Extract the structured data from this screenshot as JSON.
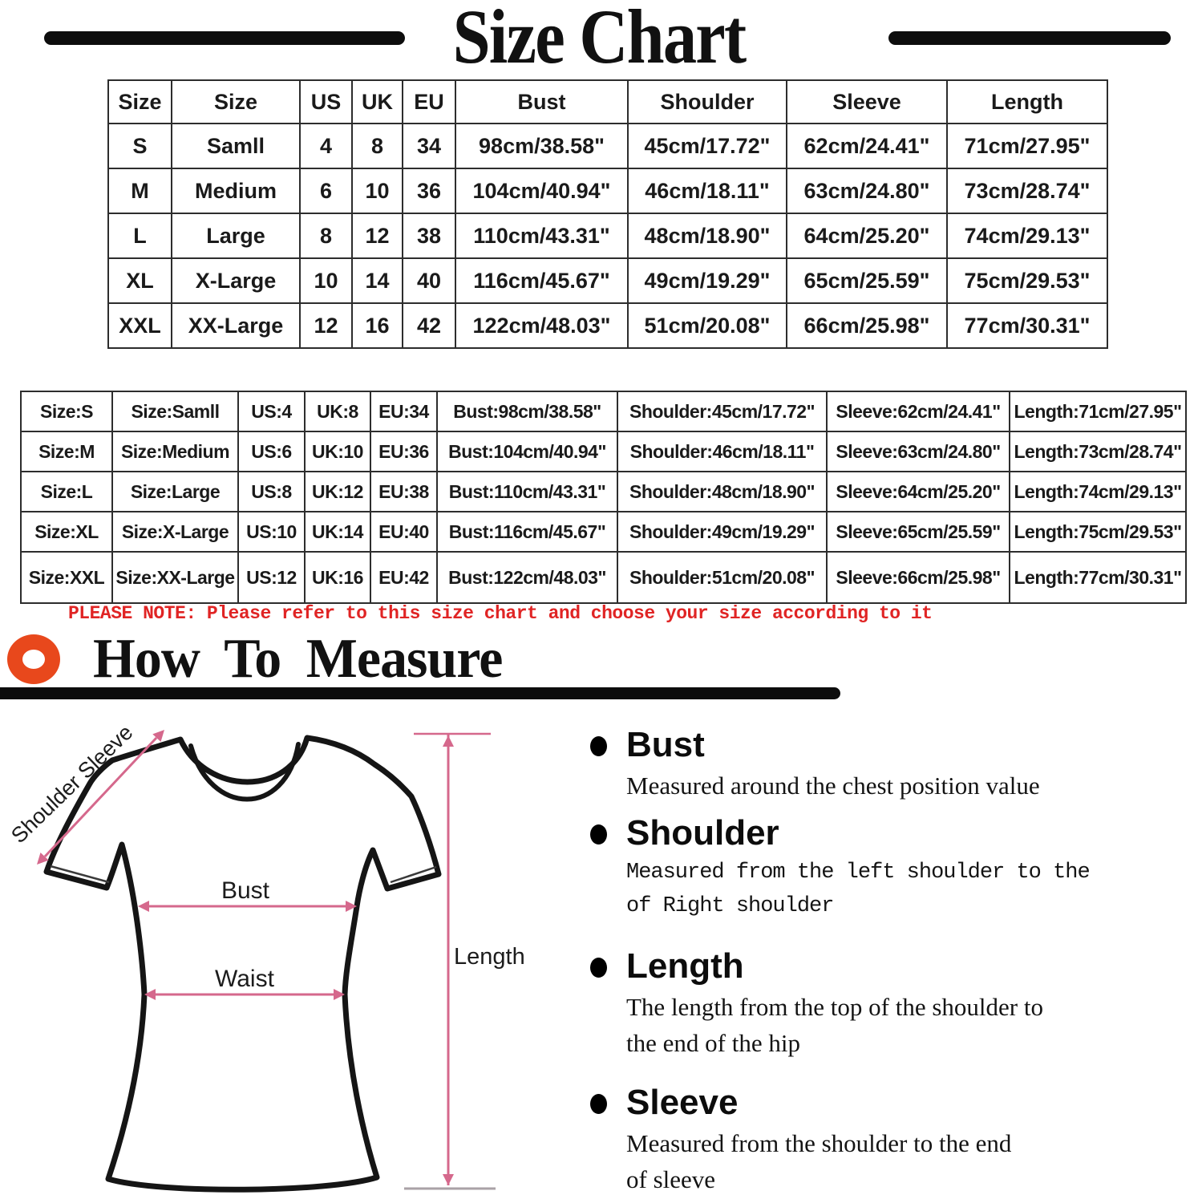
{
  "page": {
    "title": "Size Chart"
  },
  "size_chart_table": {
    "headers": [
      "Size",
      "Size",
      "US",
      "UK",
      "EU",
      "Bust",
      "Shoulder",
      "Sleeve",
      "Length"
    ],
    "rows": [
      [
        "S",
        "Samll",
        "4",
        "8",
        "34",
        "98cm/38.58\"",
        "45cm/17.72\"",
        "62cm/24.41\"",
        "71cm/27.95\""
      ],
      [
        "M",
        "Medium",
        "6",
        "10",
        "36",
        "104cm/40.94\"",
        "46cm/18.11\"",
        "63cm/24.80\"",
        "73cm/28.74\""
      ],
      [
        "L",
        "Large",
        "8",
        "12",
        "38",
        "110cm/43.31\"",
        "48cm/18.90\"",
        "64cm/25.20\"",
        "74cm/29.13\""
      ],
      [
        "XL",
        "X-Large",
        "10",
        "14",
        "40",
        "116cm/45.67\"",
        "49cm/19.29\"",
        "65cm/25.59\"",
        "75cm/29.53\""
      ],
      [
        "XXL",
        "XX-Large",
        "12",
        "16",
        "42",
        "122cm/48.03\"",
        "51cm/20.08\"",
        "66cm/25.98\"",
        "77cm/30.31\""
      ]
    ]
  },
  "size_chart_detail_table": {
    "rows": [
      [
        "Size:S",
        "Size:Samll",
        "US:4",
        "UK:8",
        "EU:34",
        "Bust:98cm/38.58\"",
        "Shoulder:45cm/17.72\"",
        "Sleeve:62cm/24.41\"",
        "Length:71cm/27.95\""
      ],
      [
        "Size:M",
        "Size:Medium",
        "US:6",
        "UK:10",
        "EU:36",
        "Bust:104cm/40.94\"",
        "Shoulder:46cm/18.11\"",
        "Sleeve:63cm/24.80\"",
        "Length:73cm/28.74\""
      ],
      [
        "Size:L",
        "Size:Large",
        "US:8",
        "UK:12",
        "EU:38",
        "Bust:110cm/43.31\"",
        "Shoulder:48cm/18.90\"",
        "Sleeve:64cm/25.20\"",
        "Length:74cm/29.13\""
      ],
      [
        "Size:XL",
        "Size:X-Large",
        "US:10",
        "UK:14",
        "EU:40",
        "Bust:116cm/45.67\"",
        "Shoulder:49cm/19.29\"",
        "Sleeve:65cm/25.59\"",
        "Length:75cm/29.53\""
      ],
      [
        "Size:XXL",
        "Size:XX-Large",
        "US:12",
        "UK:16",
        "EU:42",
        "Bust:122cm/48.03\"",
        "Shoulder:51cm/20.08\"",
        "Sleeve:66cm/25.98\"",
        "Length:77cm/30.31\""
      ]
    ]
  },
  "note": {
    "text": "PLEASE NOTE: Please refer to this size chart and choose your size according to it",
    "color": "#e02424"
  },
  "how_to_measure": {
    "title": "How To Measure",
    "icon": "ring-icon",
    "accent_color": "#e8481c",
    "diagram": {
      "shoulder_sleeve": "Shoulder Sleeve",
      "bust": "Bust",
      "waist": "Waist",
      "length": "Length",
      "line_color": "#d5688c"
    },
    "items": [
      {
        "term": "Bust",
        "desc": "Measured around the chest position value"
      },
      {
        "term": "Shoulder",
        "desc": "Measured from the left shoulder to the\nof Right shoulder"
      },
      {
        "term": "Length",
        "desc": "The length from the top of the shoulder to\nthe end of the hip"
      },
      {
        "term": "Sleeve",
        "desc": "Measured from the shoulder to the end\nof sleeve"
      }
    ]
  }
}
